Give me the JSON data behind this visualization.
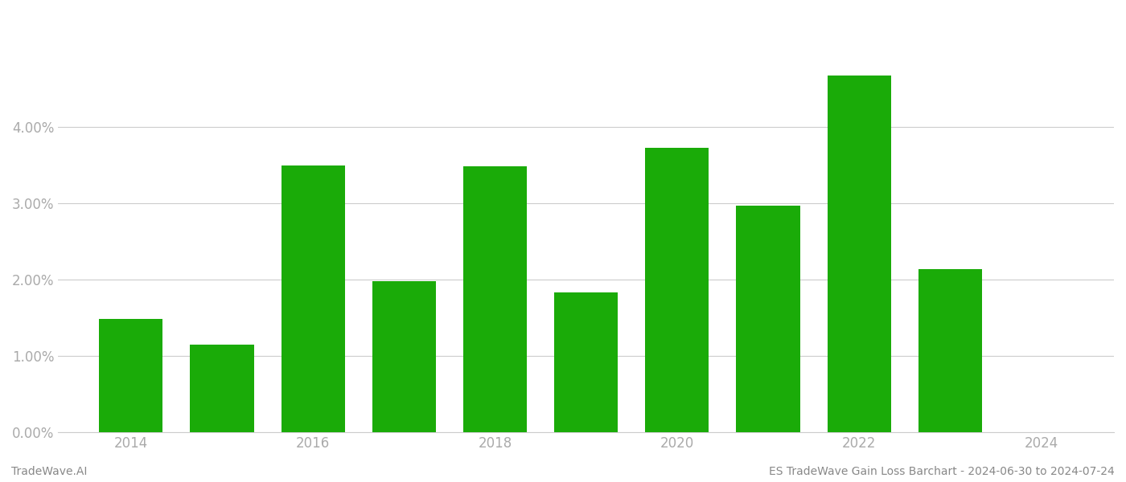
{
  "years": [
    2014,
    2015,
    2016,
    2017,
    2018,
    2019,
    2020,
    2021,
    2022,
    2023
  ],
  "values": [
    0.0148,
    0.01148,
    0.0349,
    0.0198,
    0.0348,
    0.0183,
    0.0372,
    0.0297,
    0.0467,
    0.0214
  ],
  "bar_color": "#1aab08",
  "bar_width": 0.7,
  "xlim": [
    2013.2,
    2024.8
  ],
  "ylim": [
    0,
    0.055
  ],
  "ytick_values": [
    0.0,
    0.01,
    0.02,
    0.03,
    0.04
  ],
  "xtick_values": [
    2014,
    2016,
    2018,
    2020,
    2022,
    2024
  ],
  "xtick_labels": [
    "2014",
    "2016",
    "2018",
    "2020",
    "2022",
    "2024"
  ],
  "xlabel": "",
  "ylabel": "",
  "footer_left": "TradeWave.AI",
  "footer_right": "ES TradeWave Gain Loss Barchart - 2024-06-30 to 2024-07-24",
  "grid_color": "#cccccc",
  "background_color": "#ffffff",
  "text_color": "#aaaaaa",
  "footer_color": "#888888",
  "footer_fontsize": 10,
  "tick_fontsize": 12
}
